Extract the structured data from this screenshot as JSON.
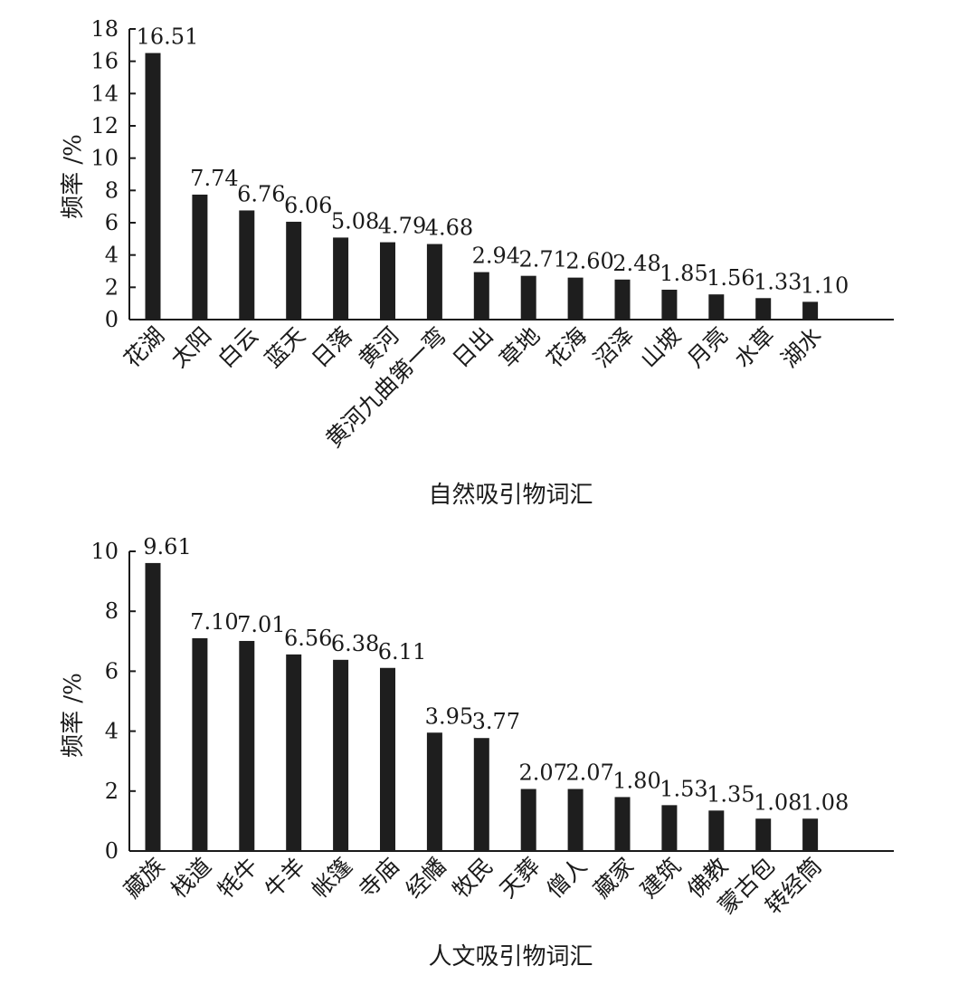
{
  "chart_data": [
    {
      "type": "bar",
      "xlabel": "自然吸引物词汇",
      "ylabel": "频率 /%",
      "ylim": [
        0,
        18
      ],
      "yticks": [
        0,
        2,
        4,
        6,
        8,
        10,
        12,
        14,
        16,
        18
      ],
      "categories": [
        "花湖",
        "太阳",
        "白云",
        "蓝天",
        "日落",
        "黄河",
        "黄河九曲第一弯",
        "日出",
        "草地",
        "花海",
        "沼泽",
        "山坡",
        "月亮",
        "水草",
        "湖水"
      ],
      "values": [
        16.51,
        7.74,
        6.76,
        6.06,
        5.08,
        4.79,
        4.68,
        2.94,
        2.71,
        2.6,
        2.48,
        1.85,
        1.56,
        1.33,
        1.1
      ],
      "value_labels": [
        "16.51",
        "7.74",
        "6.76",
        "6.06",
        "5.08",
        "4.79",
        "4.68",
        "2.94",
        "2.71",
        "2.60",
        "2.48",
        "1.85",
        "1.56",
        "1.33",
        "1.10"
      ]
    },
    {
      "type": "bar",
      "xlabel": "人文吸引物词汇",
      "ylabel": "频率 /%",
      "ylim": [
        0,
        10
      ],
      "yticks": [
        0,
        2,
        4,
        6,
        8,
        10
      ],
      "categories": [
        "藏族",
        "栈道",
        "牦牛",
        "牛羊",
        "帐篷",
        "寺庙",
        "经幡",
        "牧民",
        "天葬",
        "僧人",
        "藏家",
        "建筑",
        "佛教",
        "蒙古包",
        "转经筒"
      ],
      "values": [
        9.61,
        7.1,
        7.01,
        6.56,
        6.38,
        6.11,
        3.95,
        3.77,
        2.07,
        2.07,
        1.8,
        1.53,
        1.35,
        1.08,
        1.08
      ],
      "value_labels": [
        "9.61",
        "7.10",
        "7.01",
        "6.56",
        "6.38",
        "6.11",
        "3.95",
        "3.77",
        "2.07",
        "2.07",
        "1.80",
        "1.53",
        "1.35",
        "1.08",
        "1.08"
      ]
    }
  ]
}
